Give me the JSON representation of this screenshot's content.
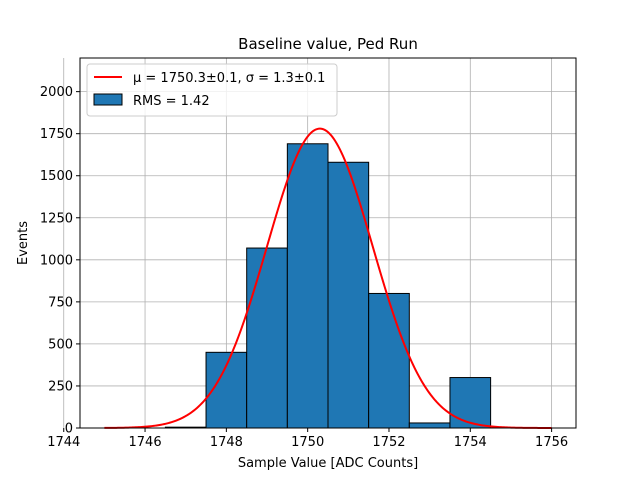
{
  "chart_data": {
    "type": "bar",
    "title": "Baseline value, Ped Run",
    "xlabel": "Sample Value [ADC Counts]",
    "ylabel": "Events",
    "xlim": [
      1744.4,
      1756.6
    ],
    "ylim": [
      0,
      2200
    ],
    "xticks": [
      1744,
      1746,
      1748,
      1750,
      1752,
      1754,
      1756
    ],
    "yticks": [
      0,
      250,
      500,
      750,
      1000,
      1250,
      1500,
      1750,
      2000
    ],
    "grid": true,
    "legend_position": "upper-left",
    "bin_width": 1,
    "histogram": {
      "name": "RMS = 1.42",
      "color": "#1f77b4",
      "edgecolor": "#000000",
      "bin_centers": [
        1747,
        1748,
        1749,
        1750,
        1751,
        1752,
        1753,
        1754
      ],
      "values": [
        5,
        450,
        1070,
        1690,
        1580,
        800,
        30,
        300
      ]
    },
    "fit": {
      "name_mu": "μ = 1750.3±0.1",
      "name_sigma": "σ = 1.3±0.1",
      "color": "#ff0000",
      "mu": 1750.3,
      "sigma": 1.3,
      "amplitude": 1780,
      "x_range": [
        1745,
        1756
      ]
    }
  }
}
